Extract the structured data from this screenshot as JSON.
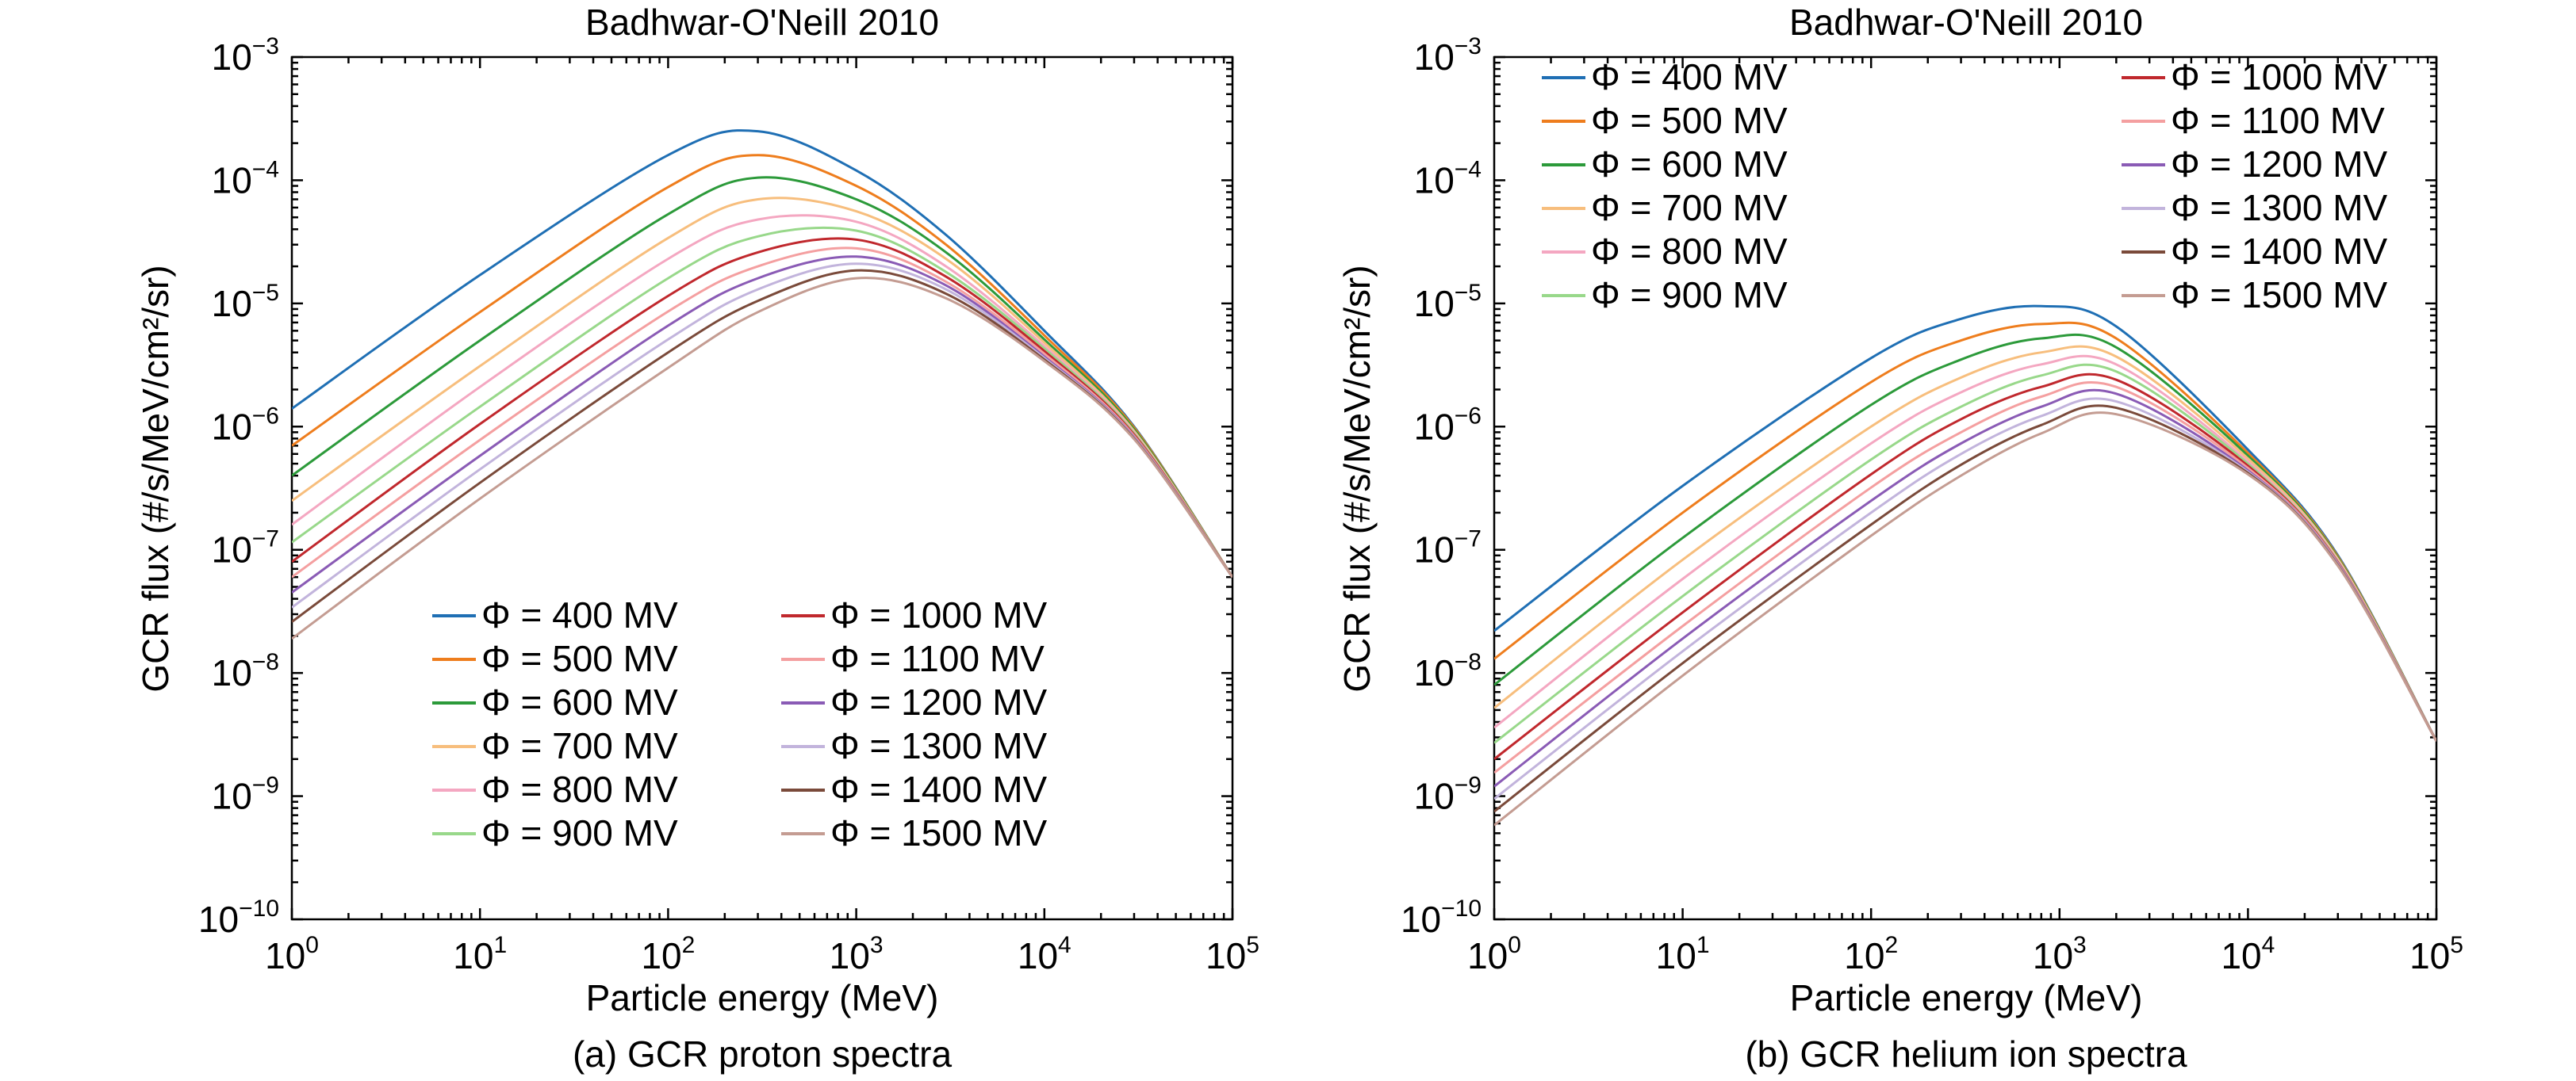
{
  "chart_data": [
    {
      "type": "line",
      "title": "Badhwar-O'Neill 2010",
      "xlabel": "Particle energy (MeV)",
      "ylabel": "GCR flux (#/s/MeV/cm²/sr)",
      "caption": "(a) GCR proton spectra",
      "xscale": "log",
      "yscale": "log",
      "xlim": [
        1,
        100000
      ],
      "ylim": [
        1e-10,
        0.001
      ],
      "xticks": [
        {
          "base": "10",
          "exp": "0"
        },
        {
          "base": "10",
          "exp": "1"
        },
        {
          "base": "10",
          "exp": "2"
        },
        {
          "base": "10",
          "exp": "3"
        },
        {
          "base": "10",
          "exp": "4"
        },
        {
          "base": "10",
          "exp": "5"
        }
      ],
      "yticks": [
        {
          "base": "10",
          "exp": "−10"
        },
        {
          "base": "10",
          "exp": "−9"
        },
        {
          "base": "10",
          "exp": "−8"
        },
        {
          "base": "10",
          "exp": "−7"
        },
        {
          "base": "10",
          "exp": "−6"
        },
        {
          "base": "10",
          "exp": "−5"
        },
        {
          "base": "10",
          "exp": "−4"
        },
        {
          "base": "10",
          "exp": "−3"
        }
      ],
      "grid": false,
      "legend_position": "bottom-left",
      "legend_columns": 2,
      "x": [
        1,
        10,
        100,
        300,
        1000,
        3000,
        10000,
        30000,
        100000
      ],
      "series": [
        {
          "name": "Φ = 400 MV",
          "color": "#1f6fb4",
          "values": [
            1.4e-06,
            1.7e-05,
            0.00016,
            0.00025,
            0.00012,
            3.6e-05,
            6e-06,
            1e-06,
            6e-08
          ]
        },
        {
          "name": "Φ = 500 MV",
          "color": "#ee7d1d",
          "values": [
            7e-07,
            8.5e-06,
            8.8e-05,
            0.00016,
            9e-05,
            3e-05,
            5.5e-06,
            9.8e-07,
            6e-08
          ]
        },
        {
          "name": "Φ = 600 MV",
          "color": "#2c9a3a",
          "values": [
            4e-07,
            5e-06,
            5.3e-05,
            0.000105,
            7e-05,
            2.6e-05,
            5.1e-06,
            9.5e-07,
            6e-08
          ]
        },
        {
          "name": "Φ = 700 MV",
          "color": "#f7be7d",
          "values": [
            2.5e-07,
            3.1e-06,
            3.4e-05,
            7e-05,
            5.6e-05,
            2.3e-05,
            4.8e-06,
            9.2e-07,
            6e-08
          ]
        },
        {
          "name": "Φ = 800 MV",
          "color": "#f4a7c1",
          "values": [
            1.6e-07,
            2.1e-06,
            2.3e-05,
            4.8e-05,
            4.6e-05,
            2e-05,
            4.5e-06,
            9e-07,
            6e-08
          ]
        },
        {
          "name": "Φ = 900 MV",
          "color": "#98d88a",
          "values": [
            1.15e-07,
            1.45e-06,
            1.6e-05,
            3.5e-05,
            3.9e-05,
            1.8e-05,
            4.3e-06,
            8.8e-07,
            6e-08
          ]
        },
        {
          "name": "Φ = 1000 MV",
          "color": "#c0282d",
          "values": [
            8e-08,
            1.05e-06,
            1.15e-05,
            2.6e-05,
            3.3e-05,
            1.65e-05,
            4.1e-06,
            8.6e-07,
            6e-08
          ]
        },
        {
          "name": "Φ = 1100 MV",
          "color": "#f49fa0",
          "values": [
            6e-08,
            7.8e-07,
            8.6e-06,
            2e-05,
            2.8e-05,
            1.5e-05,
            3.9e-06,
            8.4e-07,
            6e-08
          ]
        },
        {
          "name": "Φ = 1200 MV",
          "color": "#8a5bb5",
          "values": [
            4.5e-08,
            5.8e-07,
            6.6e-06,
            1.6e-05,
            2.4e-05,
            1.4e-05,
            3.7e-06,
            8.2e-07,
            6e-08
          ]
        },
        {
          "name": "Φ = 1300 MV",
          "color": "#c2b4dc",
          "values": [
            3.4e-08,
            4.5e-07,
            5.1e-06,
            1.3e-05,
            2.1e-05,
            1.3e-05,
            3.6e-06,
            8.1e-07,
            6e-08
          ]
        },
        {
          "name": "Φ = 1400 MV",
          "color": "#7a4a3a",
          "values": [
            2.6e-08,
            3.5e-07,
            4e-06,
            1.05e-05,
            1.85e-05,
            1.2e-05,
            3.5e-06,
            8e-07,
            6e-08
          ]
        },
        {
          "name": "Φ = 1500 MV",
          "color": "#c49c92",
          "values": [
            1.9e-08,
            2.6e-07,
            3e-06,
            8.5e-06,
            1.6e-05,
            1.1e-05,
            3.4e-06,
            7.9e-07,
            6e-08
          ]
        }
      ]
    },
    {
      "type": "line",
      "title": "Badhwar-O'Neill 2010",
      "xlabel": "Particle energy (MeV)",
      "ylabel": "GCR flux (#/s/MeV/cm²/sr)",
      "caption": "(b) GCR helium ion spectra",
      "xscale": "log",
      "yscale": "log",
      "xlim": [
        1,
        100000
      ],
      "ylim": [
        1e-10,
        0.001
      ],
      "xticks": [
        {
          "base": "10",
          "exp": "0"
        },
        {
          "base": "10",
          "exp": "1"
        },
        {
          "base": "10",
          "exp": "2"
        },
        {
          "base": "10",
          "exp": "3"
        },
        {
          "base": "10",
          "exp": "4"
        },
        {
          "base": "10",
          "exp": "5"
        }
      ],
      "yticks": [
        {
          "base": "10",
          "exp": "−10"
        },
        {
          "base": "10",
          "exp": "−9"
        },
        {
          "base": "10",
          "exp": "−8"
        },
        {
          "base": "10",
          "exp": "−7"
        },
        {
          "base": "10",
          "exp": "−6"
        },
        {
          "base": "10",
          "exp": "−5"
        },
        {
          "base": "10",
          "exp": "−4"
        },
        {
          "base": "10",
          "exp": "−3"
        }
      ],
      "grid": false,
      "legend_position": "top",
      "legend_columns": 2,
      "x": [
        1,
        10,
        100,
        300,
        800,
        2000,
        10000,
        30000,
        100000
      ],
      "series": [
        {
          "name": "Φ = 400 MV",
          "color": "#1f6fb4",
          "values": [
            2.2e-08,
            3.3e-07,
            3.6e-06,
            7.5e-06,
            9.5e-06,
            6.5e-06,
            6.5e-07,
            9e-08,
            2.8e-09
          ]
        },
        {
          "name": "Φ = 500 MV",
          "color": "#ee7d1d",
          "values": [
            1.3e-08,
            2e-07,
            2.3e-06,
            5e-06,
            6.8e-06,
            5.2e-06,
            6.1e-07,
            8.8e-08,
            2.8e-09
          ]
        },
        {
          "name": "Φ = 600 MV",
          "color": "#2c9a3a",
          "values": [
            8e-09,
            1.25e-07,
            1.5e-06,
            3.5e-06,
            5.2e-06,
            4.4e-06,
            5.8e-07,
            8.6e-08,
            2.8e-09
          ]
        },
        {
          "name": "Φ = 700 MV",
          "color": "#f7be7d",
          "values": [
            5.2e-09,
            8.3e-08,
            1e-06,
            2.5e-06,
            4e-06,
            3.7e-06,
            5.5e-07,
            8.4e-08,
            2.8e-09
          ]
        },
        {
          "name": "Φ = 800 MV",
          "color": "#f4a7c1",
          "values": [
            3.6e-09,
            5.8e-08,
            7.3e-07,
            1.9e-06,
            3.2e-06,
            3.2e-06,
            5.2e-07,
            8.2e-08,
            2.8e-09
          ]
        },
        {
          "name": "Φ = 900 MV",
          "color": "#98d88a",
          "values": [
            2.7e-09,
            4.2e-08,
            5.4e-07,
            1.45e-06,
            2.6e-06,
            2.8e-06,
            5e-07,
            8e-08,
            2.8e-09
          ]
        },
        {
          "name": "Φ = 1000 MV",
          "color": "#c0282d",
          "values": [
            2e-09,
            3.1e-08,
            4.1e-07,
            1.15e-06,
            2.1e-06,
            2.4e-06,
            4.8e-07,
            7.9e-08,
            2.8e-09
          ]
        },
        {
          "name": "Φ = 1100 MV",
          "color": "#f49fa0",
          "values": [
            1.55e-09,
            2.4e-08,
            3.2e-07,
            9e-07,
            1.75e-06,
            2.1e-06,
            4.6e-07,
            7.8e-08,
            2.8e-09
          ]
        },
        {
          "name": "Φ = 1200 MV",
          "color": "#8a5bb5",
          "values": [
            1.2e-09,
            1.9e-08,
            2.5e-07,
            7.3e-07,
            1.45e-06,
            1.85e-06,
            4.4e-07,
            7.7e-08,
            2.8e-09
          ]
        },
        {
          "name": "Φ = 1300 MV",
          "color": "#c2b4dc",
          "values": [
            9.5e-10,
            1.5e-08,
            2e-07,
            6e-07,
            1.22e-06,
            1.6e-06,
            4.3e-07,
            7.6e-08,
            2.8e-09
          ]
        },
        {
          "name": "Φ = 1400 MV",
          "color": "#7a4a3a",
          "values": [
            7.5e-10,
            1.2e-08,
            1.6e-07,
            4.9e-07,
            1.03e-06,
            1.42e-06,
            4.2e-07,
            7.5e-08,
            2.8e-09
          ]
        },
        {
          "name": "Φ = 1500 MV",
          "color": "#c49c92",
          "values": [
            5.8e-10,
            9.5e-09,
            1.3e-07,
            4e-07,
            8.8e-07,
            1.26e-06,
            4.1e-07,
            7.4e-08,
            2.8e-09
          ]
        }
      ]
    }
  ]
}
